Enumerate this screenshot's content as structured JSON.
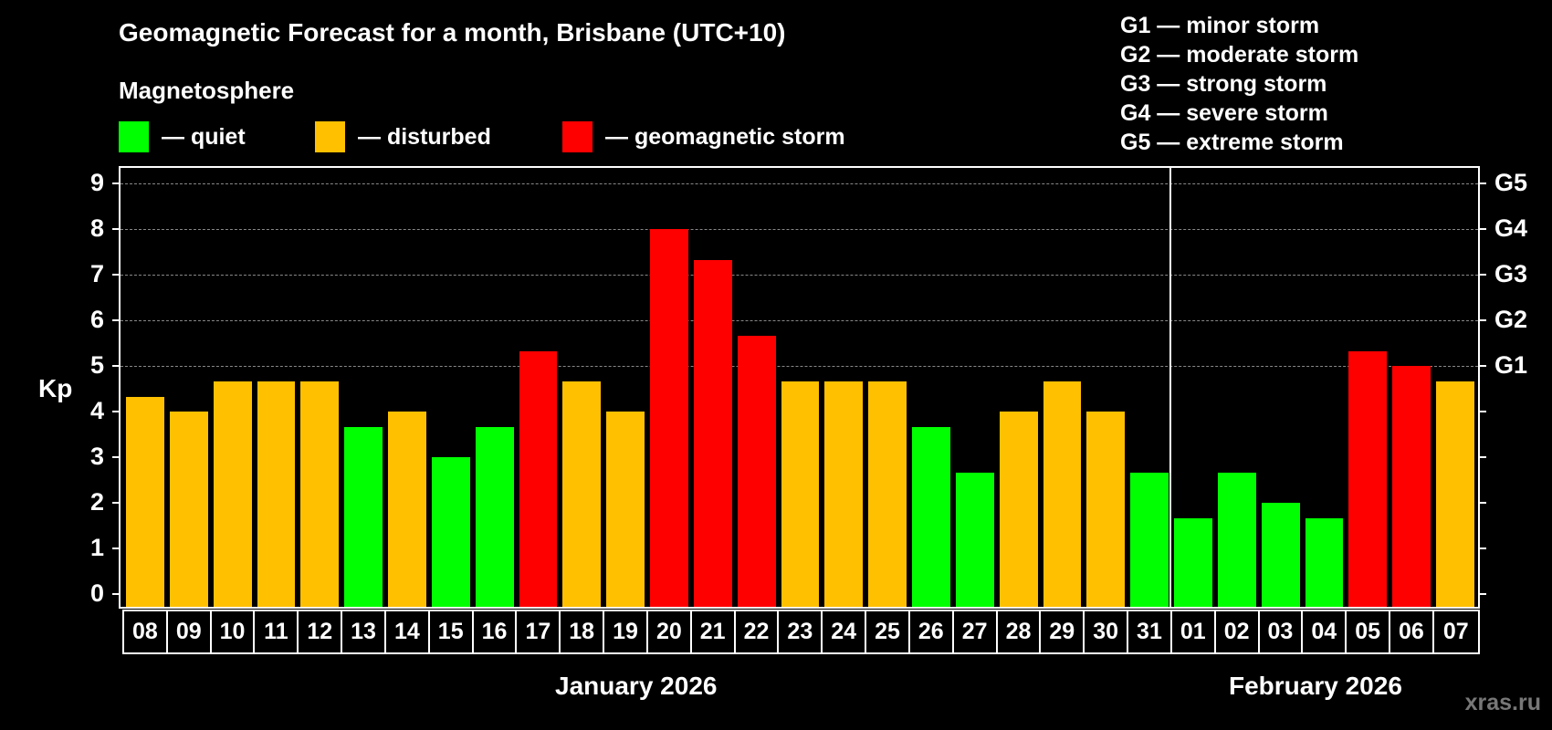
{
  "header": {
    "title": "Geomagnetic Forecast for a month, Brisbane (UTC+10)",
    "section_label": "Magnetosphere"
  },
  "legend": {
    "items": [
      {
        "label": "— quiet",
        "color": "#00ff00"
      },
      {
        "label": "— disturbed",
        "color": "#ffc000"
      },
      {
        "label": "— geomagnetic storm",
        "color": "#ff0000"
      }
    ]
  },
  "g_scale_legend": [
    "G1 — minor storm",
    "G2 — moderate storm",
    "G3 — strong storm",
    "G4 — severe storm",
    "G5 — extreme storm"
  ],
  "axes": {
    "y_label": "Kp",
    "y_ticks": [
      "0",
      "1",
      "2",
      "3",
      "4",
      "5",
      "6",
      "7",
      "8",
      "9"
    ],
    "right_ticks": [
      {
        "kp": 5,
        "label": "G1"
      },
      {
        "kp": 6,
        "label": "G2"
      },
      {
        "kp": 7,
        "label": "G3"
      },
      {
        "kp": 8,
        "label": "G4"
      },
      {
        "kp": 9,
        "label": "G5"
      }
    ],
    "months": [
      {
        "label": "January 2026"
      },
      {
        "label": "February 2026"
      }
    ]
  },
  "watermark": "xras.ru",
  "colors": {
    "quiet": "#00ff00",
    "disturbed": "#ffc000",
    "storm": "#ff0000",
    "grid": "#888888",
    "background": "#000000"
  },
  "chart_data": {
    "type": "bar",
    "title": "Geomagnetic Forecast for a month, Brisbane (UTC+10)",
    "xlabel": "January 2026 / February 2026",
    "ylabel": "Kp",
    "ylim": [
      0,
      9
    ],
    "grid": true,
    "categories": [
      "08",
      "09",
      "10",
      "11",
      "12",
      "13",
      "14",
      "15",
      "16",
      "17",
      "18",
      "19",
      "20",
      "21",
      "22",
      "23",
      "24",
      "25",
      "26",
      "27",
      "28",
      "29",
      "30",
      "31",
      "01",
      "02",
      "03",
      "04",
      "05",
      "06",
      "07"
    ],
    "values": [
      4.33,
      4.0,
      4.67,
      4.67,
      4.67,
      3.67,
      4.0,
      3.0,
      3.67,
      5.33,
      4.67,
      4.0,
      8.0,
      7.33,
      5.67,
      4.67,
      4.67,
      4.67,
      3.67,
      2.67,
      4.0,
      4.67,
      4.0,
      2.67,
      1.67,
      2.67,
      2.0,
      1.67,
      5.33,
      5.0,
      4.67
    ],
    "status": [
      "disturbed",
      "disturbed",
      "disturbed",
      "disturbed",
      "disturbed",
      "quiet",
      "disturbed",
      "quiet",
      "quiet",
      "storm",
      "disturbed",
      "disturbed",
      "storm",
      "storm",
      "storm",
      "disturbed",
      "disturbed",
      "disturbed",
      "quiet",
      "quiet",
      "disturbed",
      "disturbed",
      "disturbed",
      "quiet",
      "quiet",
      "quiet",
      "quiet",
      "quiet",
      "storm",
      "storm",
      "disturbed"
    ],
    "secondary_axis": {
      "5": "G1",
      "6": "G2",
      "7": "G3",
      "8": "G4",
      "9": "G5"
    },
    "legend": [
      "quiet",
      "disturbed",
      "geomagnetic storm"
    ],
    "month_boundary_after_index": 23
  }
}
